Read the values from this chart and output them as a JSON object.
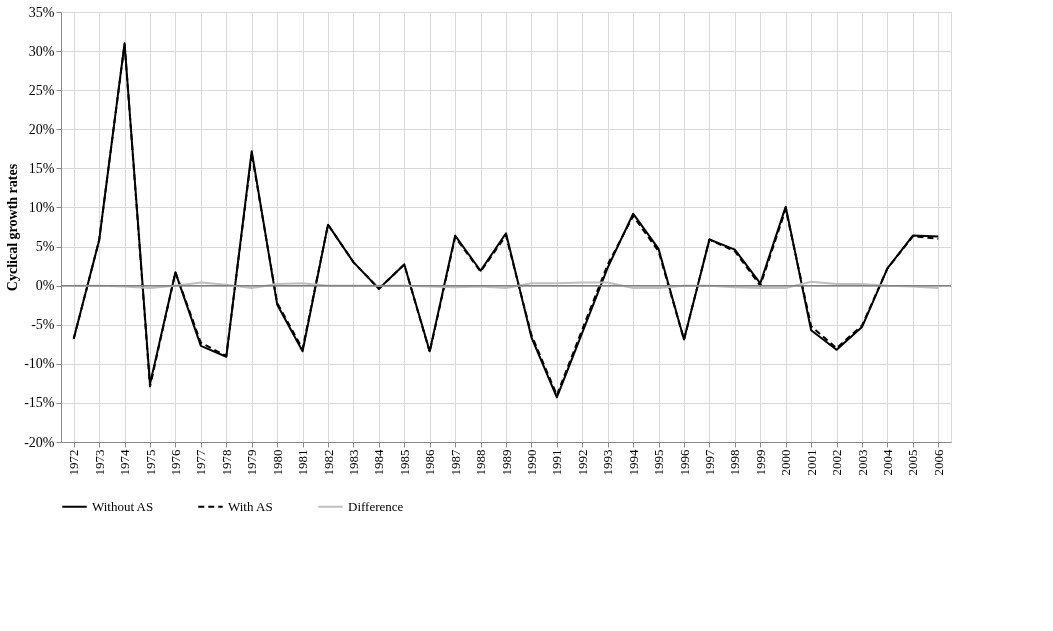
{
  "chart_data": {
    "type": "line",
    "ylabel": "Cyclical growth rates",
    "categories": [
      "1972",
      "1973",
      "1974",
      "1975",
      "1976",
      "1977",
      "1978",
      "1979",
      "1980",
      "1981",
      "1982",
      "1983",
      "1984",
      "1985",
      "1986",
      "1987",
      "1988",
      "1989",
      "1990",
      "1991",
      "1992",
      "1993",
      "1994",
      "1995",
      "1996",
      "1997",
      "1998",
      "1999",
      "2000",
      "2001",
      "2002",
      "2003",
      "2004",
      "2005",
      "2006"
    ],
    "series": [
      {
        "name": "Without AS",
        "color": "#000000",
        "line_style": "solid",
        "values": [
          -6.8,
          5.8,
          31.0,
          -12.6,
          1.7,
          -7.7,
          -9.1,
          17.2,
          -2.4,
          -8.4,
          7.8,
          3.0,
          -0.4,
          2.7,
          -8.4,
          6.4,
          1.9,
          6.7,
          -6.6,
          -14.3,
          -6.0,
          2.3,
          9.2,
          4.7,
          -6.9,
          5.9,
          4.6,
          0.3,
          10.1,
          -5.7,
          -8.2,
          -5.3,
          2.2,
          6.4,
          6.3
        ]
      },
      {
        "name": "With AS",
        "color": "#000000",
        "line_style": "dashed",
        "values": [
          -6.8,
          5.8,
          30.9,
          -12.9,
          1.7,
          -7.3,
          -9.0,
          16.9,
          -2.2,
          -8.1,
          7.8,
          3.0,
          -0.4,
          2.7,
          -8.5,
          6.2,
          1.8,
          6.4,
          -6.3,
          -14.0,
          -5.6,
          2.7,
          8.9,
          4.4,
          -6.9,
          5.9,
          4.4,
          0.0,
          9.8,
          -5.2,
          -8.0,
          -5.1,
          2.2,
          6.3,
          6.0
        ]
      },
      {
        "name": "Difference",
        "color": "#bfbfbf",
        "line_style": "solid",
        "values": [
          0.0,
          0.0,
          -0.1,
          -0.3,
          0.0,
          0.4,
          0.1,
          -0.3,
          0.2,
          0.3,
          0.0,
          0.0,
          0.0,
          0.0,
          -0.1,
          -0.2,
          -0.1,
          -0.3,
          0.3,
          0.3,
          0.4,
          0.4,
          -0.3,
          -0.3,
          0.0,
          0.0,
          -0.2,
          -0.3,
          -0.3,
          0.5,
          0.2,
          0.2,
          0.0,
          -0.1,
          -0.3
        ]
      }
    ],
    "ylim": [
      -20,
      35
    ],
    "yticks": [
      {
        "value": -20,
        "label": "-20%"
      },
      {
        "value": -15,
        "label": "-15%"
      },
      {
        "value": -10,
        "label": "-10%"
      },
      {
        "value": -5,
        "label": "-5%"
      },
      {
        "value": 0,
        "label": "0%"
      },
      {
        "value": 5,
        "label": "5%"
      },
      {
        "value": 10,
        "label": "10%"
      },
      {
        "value": 15,
        "label": "15%"
      },
      {
        "value": 20,
        "label": "20%"
      },
      {
        "value": 25,
        "label": "25%"
      },
      {
        "value": 30,
        "label": "30%"
      },
      {
        "value": 35,
        "label": "35%"
      }
    ],
    "ref_lines": [
      {
        "axis": "y",
        "value": 0,
        "color": "#808080"
      }
    ],
    "grid": true,
    "legend": "bottom",
    "marker": "none"
  }
}
